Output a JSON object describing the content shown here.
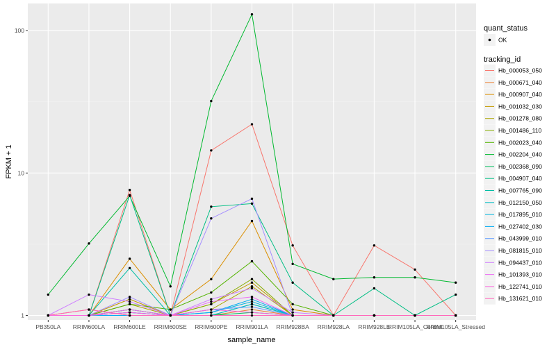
{
  "chart_data": {
    "type": "line",
    "xlabel": "sample_name",
    "ylabel": "FPKM + 1",
    "y_scale": "log10",
    "ylim": [
      0.93,
      155
    ],
    "yticks": [
      1,
      10,
      100
    ],
    "ytick_labels": [
      "1",
      "10",
      "100"
    ],
    "categories": [
      "PB350LA",
      "RRIM600LA",
      "RRIM600LE",
      "RRIM600SE",
      "RRIM600PE",
      "RRIM901LA",
      "RRIM928BA",
      "RRIM928LA",
      "RRIM928LE",
      "RRIM105LA_Control",
      "RRIM105LA_Stressed"
    ],
    "grid": "on",
    "legend_position": "right",
    "legend_status": {
      "title": "quant_status",
      "items": [
        "OK"
      ]
    },
    "legend_tracking_title": "tracking_id",
    "series": [
      {
        "name": "Hb_000053_050",
        "color": "#F8766D",
        "values": [
          1.0,
          1.0,
          7.6,
          1.0,
          14.4,
          22.0,
          3.1,
          1.0,
          3.1,
          2.1,
          1.0
        ]
      },
      {
        "name": "Hb_000671_040",
        "color": "#EB8335",
        "values": [
          1.0,
          1.1,
          1.0,
          1.0,
          1.0,
          1.1,
          1.0,
          1.0,
          1.0,
          1.0,
          1.0
        ]
      },
      {
        "name": "Hb_000907_040",
        "color": "#DA8F00",
        "values": [
          1.0,
          1.0,
          2.5,
          1.1,
          1.8,
          4.6,
          1.1,
          1.0,
          1.0,
          1.0,
          1.0
        ]
      },
      {
        "name": "Hb_001032_030",
        "color": "#C49A00",
        "values": [
          1.0,
          1.0,
          1.3,
          1.0,
          1.2,
          1.7,
          1.0,
          1.0,
          1.0,
          1.0,
          1.0
        ]
      },
      {
        "name": "Hb_001278_080",
        "color": "#A9A400",
        "values": [
          1.0,
          1.0,
          1.2,
          1.0,
          1.1,
          1.6,
          1.0,
          1.0,
          1.0,
          1.0,
          1.0
        ]
      },
      {
        "name": "Hb_001486_110",
        "color": "#86AC00",
        "values": [
          1.0,
          1.0,
          1.1,
          1.0,
          1.2,
          1.8,
          1.0,
          1.0,
          1.0,
          1.0,
          1.0
        ]
      },
      {
        "name": "Hb_002023_040",
        "color": "#53B400",
        "values": [
          1.0,
          1.0,
          1.2,
          1.1,
          1.45,
          2.4,
          1.2,
          1.0,
          1.0,
          1.0,
          1.0
        ]
      },
      {
        "name": "Hb_002204_040",
        "color": "#00B92F",
        "values": [
          1.4,
          3.2,
          6.9,
          1.6,
          32.0,
          130.0,
          2.3,
          1.8,
          1.85,
          1.85,
          1.7
        ]
      },
      {
        "name": "Hb_002368_090",
        "color": "#00BC5E",
        "values": [
          1.0,
          1.0,
          1.1,
          1.0,
          1.0,
          1.05,
          1.0,
          1.0,
          1.0,
          1.0,
          1.0
        ]
      },
      {
        "name": "Hb_004907_040",
        "color": "#00BE84",
        "values": [
          1.0,
          1.0,
          7.0,
          1.0,
          5.8,
          6.1,
          1.7,
          1.0,
          1.55,
          1.0,
          1.4
        ]
      },
      {
        "name": "Hb_007765_090",
        "color": "#00BEA5",
        "values": [
          1.0,
          1.0,
          2.15,
          1.0,
          1.0,
          1.2,
          1.0,
          1.0,
          1.0,
          1.0,
          1.0
        ]
      },
      {
        "name": "Hb_012150_050",
        "color": "#00BBC3",
        "values": [
          1.0,
          1.0,
          1.05,
          1.0,
          1.0,
          1.2,
          1.0,
          1.0,
          1.0,
          1.0,
          1.0
        ]
      },
      {
        "name": "Hb_017895_010",
        "color": "#00B5DD",
        "values": [
          1.0,
          1.0,
          1.05,
          1.0,
          1.05,
          1.25,
          1.0,
          1.0,
          1.0,
          1.0,
          1.0
        ]
      },
      {
        "name": "Hb_027402_030",
        "color": "#00ABF3",
        "values": [
          1.0,
          1.0,
          1.0,
          1.0,
          1.05,
          1.3,
          1.0,
          1.0,
          1.0,
          1.0,
          1.0
        ]
      },
      {
        "name": "Hb_043999_010",
        "color": "#619CFF",
        "values": [
          1.0,
          1.0,
          1.05,
          1.0,
          1.1,
          1.15,
          1.0,
          1.0,
          1.0,
          1.0,
          1.0
        ]
      },
      {
        "name": "Hb_081815_010",
        "color": "#A48DFF",
        "values": [
          1.0,
          1.0,
          1.35,
          1.0,
          4.8,
          6.6,
          1.0,
          1.0,
          1.0,
          1.0,
          1.0
        ]
      },
      {
        "name": "Hb_094437_010",
        "color": "#CF7FFF",
        "values": [
          1.0,
          1.4,
          1.25,
          1.0,
          1.3,
          1.55,
          1.05,
          1.0,
          1.0,
          1.0,
          1.0
        ]
      },
      {
        "name": "Hb_101393_010",
        "color": "#EC6FF3",
        "values": [
          1.0,
          1.0,
          1.1,
          1.0,
          1.25,
          1.35,
          1.0,
          1.0,
          1.0,
          1.0,
          1.0
        ]
      },
      {
        "name": "Hb_122741_010",
        "color": "#FC63DF",
        "values": [
          1.0,
          1.0,
          1.05,
          1.0,
          1.1,
          1.05,
          1.0,
          1.0,
          1.0,
          1.0,
          1.0
        ]
      },
      {
        "name": "Hb_131621_010",
        "color": "#FF65B9",
        "values": [
          1.0,
          1.1,
          1.0,
          1.0,
          1.0,
          1.0,
          1.0,
          1.0,
          1.0,
          1.0,
          1.0
        ]
      }
    ]
  },
  "colors": {
    "panel_background": "#EBEBEB",
    "grid_major": "#FFFFFF",
    "point": "#000000"
  }
}
